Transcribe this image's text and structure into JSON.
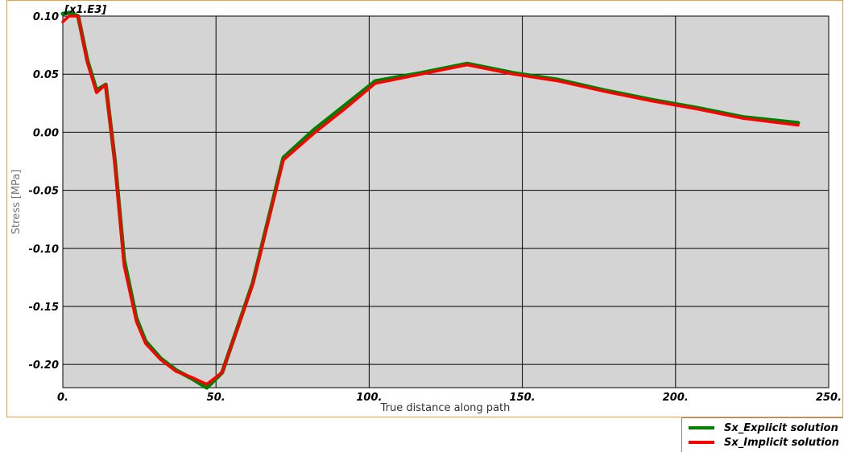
{
  "chart_data": {
    "type": "line",
    "multiplier": "[x1.E3]",
    "xlabel": "True distance along path",
    "ylabel": "Stress [MPa]",
    "xlim": [
      0,
      250
    ],
    "ylim": [
      -0.22,
      0.1
    ],
    "x_ticks": [
      0,
      50,
      100,
      150,
      200,
      250
    ],
    "x_tick_labels": [
      "0.",
      "50.",
      "100.",
      "150.",
      "200.",
      "250."
    ],
    "y_ticks": [
      0.1,
      0.05,
      0.0,
      -0.05,
      -0.1,
      -0.15,
      -0.2
    ],
    "y_tick_labels": [
      "0.10",
      "0.05",
      "0.00",
      "-0.05",
      "-0.10",
      "-0.15",
      "-0.20"
    ],
    "grid": true,
    "legend_position": "bottom-right",
    "series": [
      {
        "name": "Sx_Explicit solution",
        "color": "#008000",
        "points": [
          [
            0,
            0.102
          ],
          [
            2,
            0.103
          ],
          [
            5,
            0.1
          ],
          [
            8,
            0.062
          ],
          [
            11,
            0.036
          ],
          [
            14,
            0.041
          ],
          [
            17,
            -0.025
          ],
          [
            20,
            -0.11
          ],
          [
            24,
            -0.16
          ],
          [
            27,
            -0.18
          ],
          [
            32,
            -0.195
          ],
          [
            37,
            -0.205
          ],
          [
            42,
            -0.212
          ],
          [
            47,
            -0.22
          ],
          [
            52,
            -0.207
          ],
          [
            62,
            -0.13
          ],
          [
            72,
            -0.022
          ],
          [
            82,
            0.002
          ],
          [
            92,
            0.023
          ],
          [
            102,
            0.044
          ],
          [
            117,
            0.051
          ],
          [
            132,
            0.059
          ],
          [
            147,
            0.051
          ],
          [
            162,
            0.045
          ],
          [
            177,
            0.036
          ],
          [
            192,
            0.028
          ],
          [
            207,
            0.021
          ],
          [
            222,
            0.013
          ],
          [
            240,
            0.008
          ]
        ]
      },
      {
        "name": "Sx_Implicit solution",
        "color": "#ff0000",
        "points": [
          [
            0,
            0.095
          ],
          [
            2,
            0.1
          ],
          [
            5,
            0.1
          ],
          [
            8,
            0.06
          ],
          [
            11,
            0.034
          ],
          [
            14,
            0.041
          ],
          [
            17,
            -0.027
          ],
          [
            20,
            -0.115
          ],
          [
            24,
            -0.163
          ],
          [
            27,
            -0.182
          ],
          [
            32,
            -0.196
          ],
          [
            37,
            -0.206
          ],
          [
            42,
            -0.211
          ],
          [
            47,
            -0.217
          ],
          [
            52,
            -0.207
          ],
          [
            62,
            -0.131
          ],
          [
            72,
            -0.024
          ],
          [
            82,
            -0.001
          ],
          [
            92,
            0.02
          ],
          [
            102,
            0.042
          ],
          [
            117,
            0.05
          ],
          [
            132,
            0.058
          ],
          [
            147,
            0.05
          ],
          [
            162,
            0.044
          ],
          [
            177,
            0.035
          ],
          [
            192,
            0.027
          ],
          [
            207,
            0.02
          ],
          [
            222,
            0.012
          ],
          [
            240,
            0.006
          ]
        ]
      }
    ]
  }
}
